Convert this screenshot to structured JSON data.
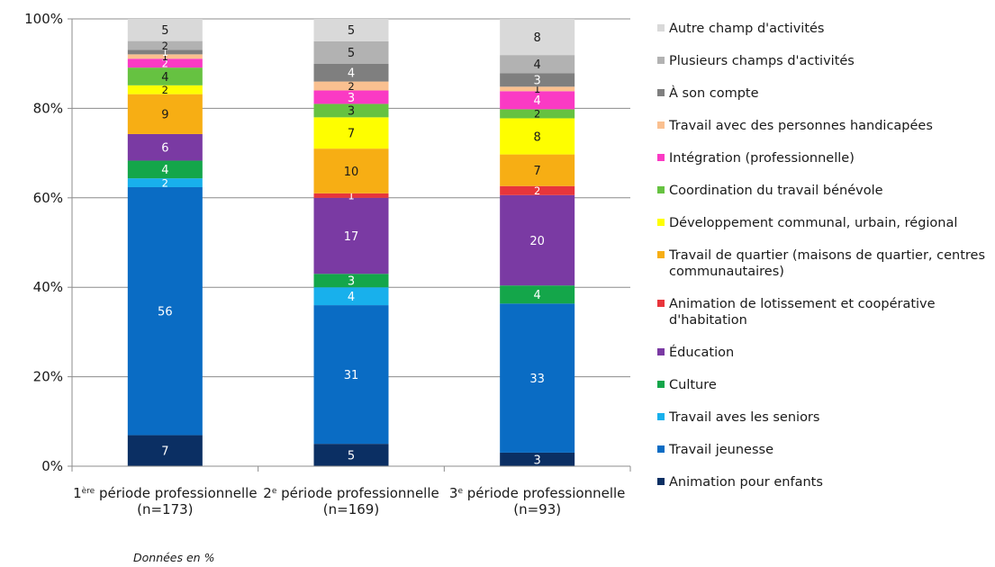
{
  "chart_data": {
    "type": "bar",
    "stacked": true,
    "percent": true,
    "categories": [
      {
        "prefix": "1",
        "sup": "ère",
        "rest": " période professionnelle",
        "n": "(n=173)"
      },
      {
        "prefix": "2",
        "sup": "e",
        "rest": " période professionnelle",
        "n": "(n=169)"
      },
      {
        "prefix": "3",
        "sup": "e",
        "rest": " période professionnelle",
        "n": "(n=93)"
      }
    ],
    "ylim": [
      0,
      100
    ],
    "yticks": [
      "0%",
      "20%",
      "40%",
      "60%",
      "80%",
      "100%"
    ],
    "grid": true,
    "legend_position": "right",
    "series": [
      {
        "name": "Animation pour enfants",
        "color": "#0b2f63",
        "values": [
          7,
          5,
          3
        ]
      },
      {
        "name": "Travail jeunesse",
        "color": "#0a6cc4",
        "values": [
          56,
          31,
          33
        ]
      },
      {
        "name": "Travail aves les seniors",
        "color": "#18b0ec",
        "values": [
          2,
          4,
          null
        ]
      },
      {
        "name": "Culture",
        "color": "#14a64a",
        "values": [
          4,
          3,
          4
        ]
      },
      {
        "name": "Éducation",
        "color": "#7a3aa3",
        "values": [
          6,
          17,
          20
        ]
      },
      {
        "name": "Animation de lotissement et coopérative d'habitation",
        "color": "#e8353b",
        "values": [
          null,
          1,
          2
        ]
      },
      {
        "name": "Travail de quartier (maisons de quartier, centres communautaires)",
        "color": "#f7ae14",
        "values": [
          9,
          10,
          7
        ]
      },
      {
        "name": "Développement communal, urbain, régional",
        "color": "#fefe00",
        "values": [
          2,
          7,
          8
        ]
      },
      {
        "name": "Coordination du travail bénévole",
        "color": "#66c241",
        "values": [
          4,
          3,
          2
        ]
      },
      {
        "name": "Intégration (professionnelle)",
        "color": "#fa3ac4",
        "values": [
          2,
          3,
          4
        ]
      },
      {
        "name": "Travail avec des personnes handicapées",
        "color": "#fac090",
        "values": [
          1,
          2,
          1
        ]
      },
      {
        "name": "À son compte",
        "color": "#7f7f7f",
        "values": [
          1,
          4,
          3
        ]
      },
      {
        "name": "Plusieurs champs d'activités",
        "color": "#b2b2b2",
        "values": [
          2,
          5,
          4
        ]
      },
      {
        "name": "Autre champ d'activités",
        "color": "#d9d9d9",
        "values": [
          5,
          5,
          8
        ]
      }
    ]
  },
  "footnote": "Données en %"
}
